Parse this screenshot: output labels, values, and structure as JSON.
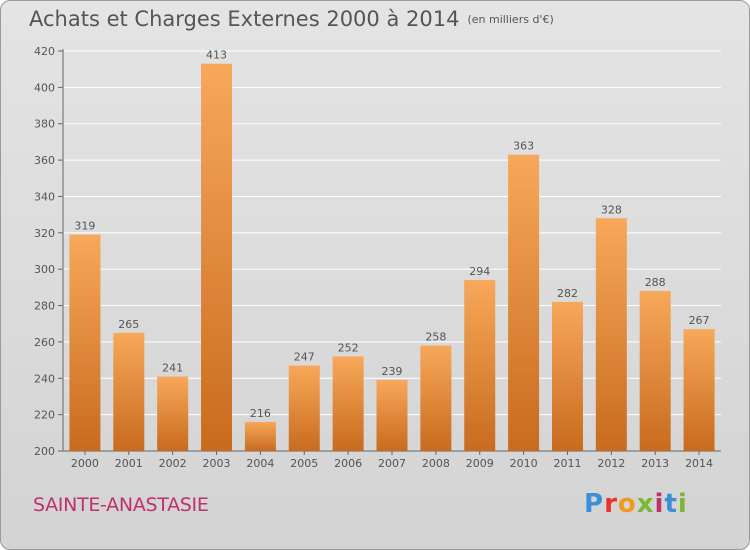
{
  "header": {
    "title": "Achats et Charges Externes 2000 à 2014",
    "unit": "(en milliers d'€)"
  },
  "footer": {
    "commune": "SAINTE-ANASTASIE",
    "brand": "Proxiti"
  },
  "colors": {
    "bar_light": "#f7a85a",
    "bar_dark": "#c86b1e",
    "grid": "#ffffff",
    "text": "#555555",
    "commune": "#c0306a"
  },
  "chart_data": {
    "type": "bar",
    "title": "Achats et Charges Externes 2000 à 2014",
    "subtitle": "(en milliers d'€)",
    "categories": [
      "2000",
      "2001",
      "2002",
      "2003",
      "2004",
      "2005",
      "2006",
      "2007",
      "2008",
      "2009",
      "2010",
      "2011",
      "2012",
      "2013",
      "2014"
    ],
    "values": [
      319,
      265,
      241,
      413,
      216,
      247,
      252,
      239,
      258,
      294,
      363,
      282,
      328,
      288,
      267
    ],
    "ylim": [
      200,
      420
    ],
    "yticks": [
      200,
      220,
      240,
      260,
      280,
      300,
      320,
      340,
      360,
      380,
      400,
      420
    ],
    "grid": true,
    "data_labels": true
  }
}
